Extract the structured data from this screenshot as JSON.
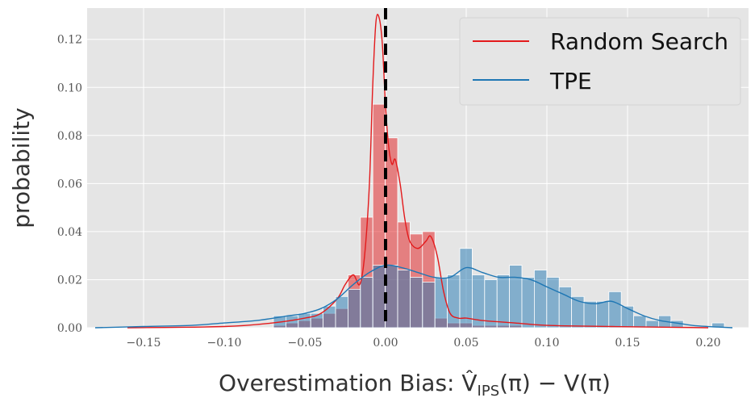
{
  "chart_data": {
    "type": "histogram",
    "xlabel": "Overestimation Bias: V̂",
    "xlabel_sub": "IPS",
    "xlabel_rest": "(π) − V(π)",
    "ylabel": "probability",
    "xlim": [
      -0.185,
      0.225
    ],
    "ylim": [
      0,
      0.133
    ],
    "x_ticks": [
      -0.15,
      -0.1,
      -0.05,
      0.0,
      0.05,
      0.1,
      0.15,
      0.2
    ],
    "x_tick_labels": [
      "−0.15",
      "−0.10",
      "−0.05",
      "0.00",
      "0.05",
      "0.10",
      "0.15",
      "0.20"
    ],
    "y_ticks": [
      0.0,
      0.02,
      0.04,
      0.06,
      0.08,
      0.1,
      0.12
    ],
    "y_tick_labels": [
      "0.00",
      "0.02",
      "0.04",
      "0.06",
      "0.08",
      "0.10",
      "0.12"
    ],
    "grid": true,
    "legend_position": "top-right",
    "reference_line_x": 0.0,
    "bin_width": 0.0077,
    "series": [
      {
        "name": "Random Search",
        "color": "#e31a1c",
        "bin_starts": [
          -0.0695,
          -0.0618,
          -0.0541,
          -0.0464,
          -0.0387,
          -0.031,
          -0.0233,
          -0.0156,
          -0.0079,
          -0.0002,
          0.0075,
          0.0152,
          0.0229,
          0.0306,
          0.0383,
          0.046,
          0.0537,
          0.0614,
          0.0691,
          0.0768
        ],
        "values": [
          0.001,
          0.002,
          0.003,
          0.004,
          0.006,
          0.008,
          0.022,
          0.046,
          0.093,
          0.079,
          0.044,
          0.039,
          0.04,
          0.004,
          0.002,
          0.002,
          0.001,
          0.001,
          0.001,
          0.001
        ],
        "kde_x": [
          -0.16,
          -0.1,
          -0.07,
          -0.05,
          -0.04,
          -0.03,
          -0.025,
          -0.02,
          -0.016,
          -0.013,
          -0.01,
          -0.008,
          -0.006,
          -0.004,
          -0.002,
          0.0,
          0.002,
          0.004,
          0.006,
          0.009,
          0.012,
          0.015,
          0.02,
          0.025,
          0.028,
          0.032,
          0.036,
          0.04,
          0.045,
          0.05,
          0.06,
          0.08,
          0.1,
          0.14,
          0.2
        ],
        "kde_y": [
          0.0,
          0.0005,
          0.002,
          0.004,
          0.006,
          0.012,
          0.018,
          0.022,
          0.018,
          0.03,
          0.06,
          0.1,
          0.127,
          0.129,
          0.118,
          0.092,
          0.075,
          0.068,
          0.07,
          0.06,
          0.045,
          0.036,
          0.033,
          0.036,
          0.038,
          0.03,
          0.015,
          0.006,
          0.004,
          0.004,
          0.003,
          0.002,
          0.001,
          0.0005,
          0.0
        ]
      },
      {
        "name": "TPE",
        "color": "#1f77b4",
        "bin_starts": [
          -0.0695,
          -0.0618,
          -0.0541,
          -0.0464,
          -0.0387,
          -0.031,
          -0.0233,
          -0.0156,
          -0.0079,
          -0.0002,
          0.0075,
          0.0152,
          0.0229,
          0.0306,
          0.0383,
          0.046,
          0.0537,
          0.0614,
          0.0691,
          0.0768,
          0.0845,
          0.0922,
          0.0999,
          0.1076,
          0.1153,
          0.123,
          0.1307,
          0.1384,
          0.1461,
          0.1538,
          0.1615,
          0.1692,
          0.1769,
          0.2023
        ],
        "values": [
          0.005,
          0.005,
          0.006,
          0.006,
          0.009,
          0.013,
          0.016,
          0.021,
          0.026,
          0.026,
          0.024,
          0.021,
          0.019,
          0.021,
          0.022,
          0.033,
          0.022,
          0.02,
          0.022,
          0.026,
          0.021,
          0.024,
          0.021,
          0.017,
          0.013,
          0.011,
          0.011,
          0.015,
          0.009,
          0.005,
          0.003,
          0.005,
          0.003,
          0.002
        ],
        "kde_x": [
          -0.18,
          -0.15,
          -0.12,
          -0.1,
          -0.08,
          -0.06,
          -0.05,
          -0.04,
          -0.03,
          -0.02,
          -0.01,
          0.0,
          0.01,
          0.02,
          0.03,
          0.04,
          0.05,
          0.06,
          0.07,
          0.08,
          0.09,
          0.1,
          0.11,
          0.12,
          0.13,
          0.14,
          0.15,
          0.16,
          0.17,
          0.18,
          0.19,
          0.2,
          0.215
        ],
        "kde_y": [
          0.0,
          0.0005,
          0.001,
          0.002,
          0.003,
          0.005,
          0.006,
          0.008,
          0.012,
          0.018,
          0.023,
          0.026,
          0.025,
          0.023,
          0.021,
          0.021,
          0.025,
          0.023,
          0.021,
          0.021,
          0.02,
          0.017,
          0.014,
          0.011,
          0.01,
          0.011,
          0.008,
          0.005,
          0.003,
          0.002,
          0.001,
          0.0005,
          0.0
        ]
      }
    ]
  }
}
